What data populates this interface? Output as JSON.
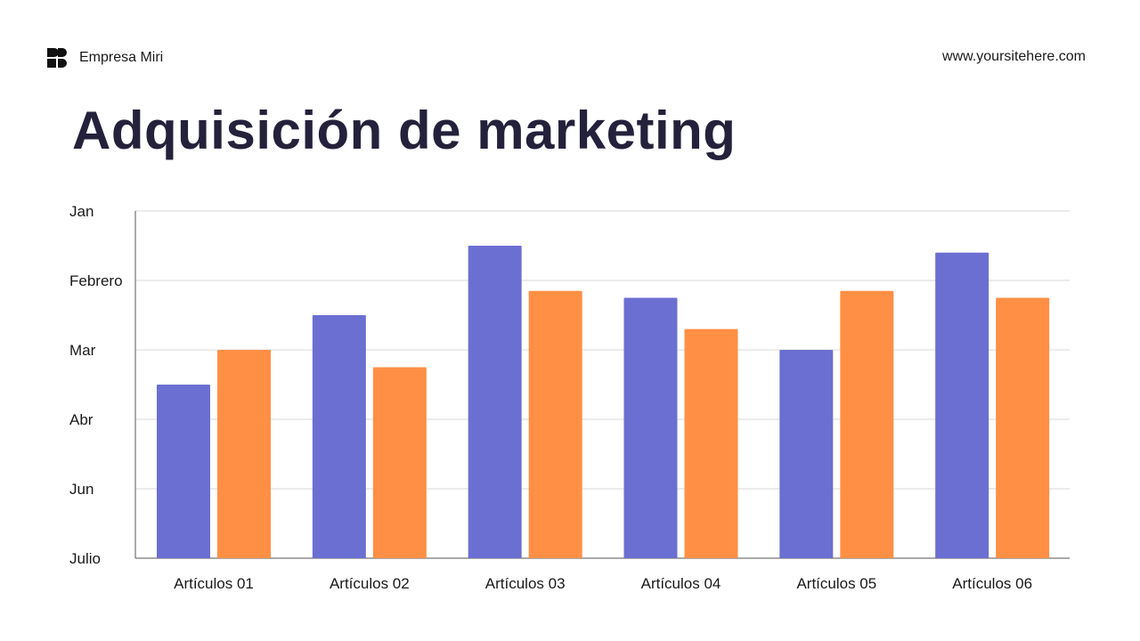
{
  "header": {
    "brand": "Empresa Miri",
    "website": "www.yoursitehere.com",
    "title": "Adquisición de marketing"
  },
  "colors": {
    "series1": "#6b6fd1",
    "series2": "#ff8f45",
    "grid": "#d9d9d9",
    "axis": "#555555"
  },
  "chart_data": {
    "type": "bar",
    "title": "Adquisición de marketing",
    "categories": [
      "Artículos 01",
      "Artículos 02",
      "Artículos 03",
      "Artículos 04",
      "Artículos 05",
      "Artículos 06"
    ],
    "y_tick_labels": [
      "Julio",
      "Jun",
      "Abr",
      "Mar",
      "Febrero",
      "Jan"
    ],
    "ylim": [
      0,
      5
    ],
    "grid": true,
    "legend": "none",
    "series": [
      {
        "values": [
          2.5,
          3.5,
          4.5,
          3.75,
          3.0,
          4.4
        ],
        "color": "#6b6fd1"
      },
      {
        "values": [
          3.0,
          2.75,
          3.85,
          3.3,
          3.85,
          3.75
        ],
        "color": "#ff8f45"
      }
    ]
  }
}
